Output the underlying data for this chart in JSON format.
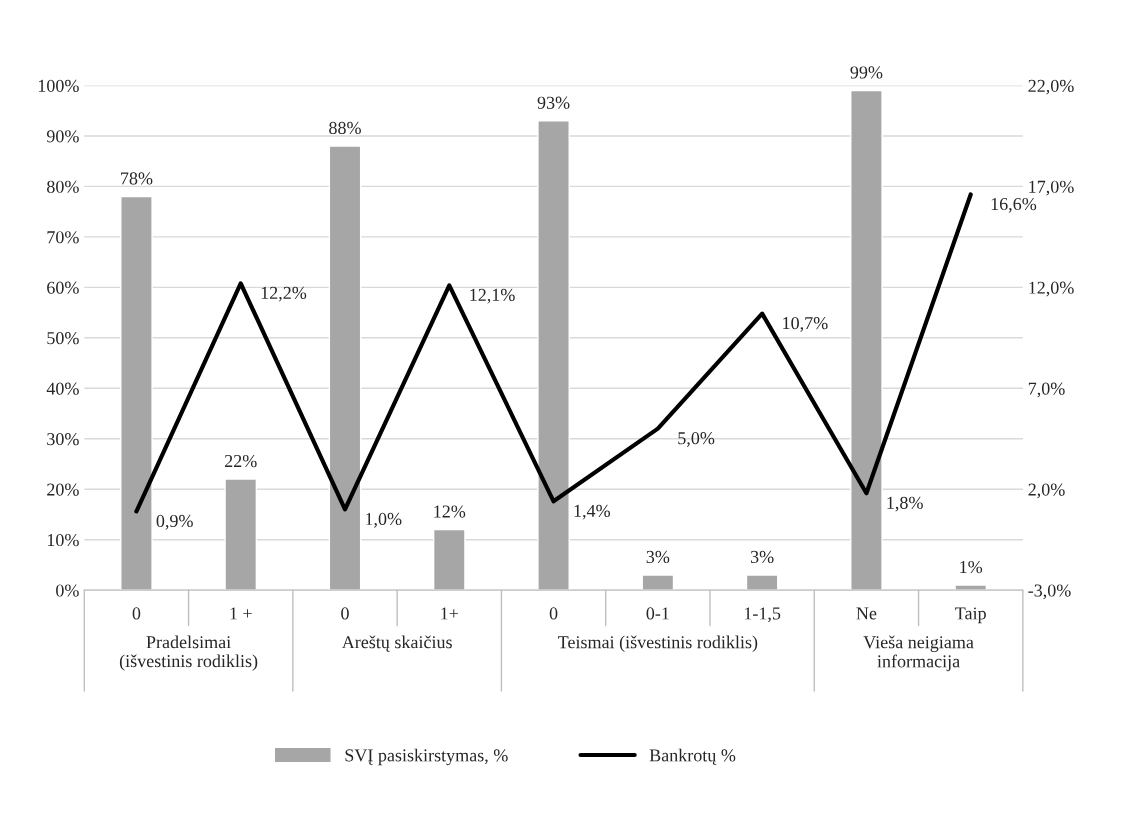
{
  "chart_data": {
    "type": "bar",
    "categories": [
      "0",
      "1 +",
      "0",
      "1+",
      "0",
      "0-1",
      "1-1,5",
      "Ne",
      "Taip"
    ],
    "series": [
      {
        "name": "SVĮ pasiskirstymas, %",
        "color": "#a6a6a6",
        "values": [
          78,
          22,
          88,
          12,
          93,
          3,
          3,
          99,
          1
        ],
        "value_labels": [
          "78%",
          "22%",
          "88%",
          "12%",
          "93%",
          "3%",
          "3%",
          "99%",
          "1%"
        ]
      },
      {
        "name": "Bankrotų %",
        "type": "line",
        "axis": "y2",
        "color": "#000000",
        "values": [
          0.9,
          12.2,
          1.0,
          12.1,
          1.4,
          5.0,
          10.7,
          1.8,
          16.6
        ],
        "value_labels": [
          "0,9%",
          "12,2%",
          "1,0%",
          "12,1%",
          "1,4%",
          "5,0%",
          "10,7%",
          "1,8%",
          "16,6%"
        ]
      }
    ],
    "ylim": [
      0,
      100
    ],
    "yticks": [
      {
        "value": 0,
        "label": "0%"
      },
      {
        "value": 10,
        "label": "10%"
      },
      {
        "value": 20,
        "label": "20%"
      },
      {
        "value": 30,
        "label": "30%"
      },
      {
        "value": 40,
        "label": "40%"
      },
      {
        "value": 50,
        "label": "50%"
      },
      {
        "value": 60,
        "label": "60%"
      },
      {
        "value": 70,
        "label": "70%"
      },
      {
        "value": 80,
        "label": "80%"
      },
      {
        "value": 90,
        "label": "90%"
      },
      {
        "value": 100,
        "label": "100%"
      }
    ],
    "y2lim": [
      -3,
      22
    ],
    "y2ticks": [
      {
        "value": -3,
        "label": "-3,0%"
      },
      {
        "value": 2,
        "label": "2,0%"
      },
      {
        "value": 7,
        "label": "7,0%"
      },
      {
        "value": 12,
        "label": "12,0%"
      },
      {
        "value": 17,
        "label": "17,0%"
      },
      {
        "value": 22,
        "label": "22,0%"
      }
    ],
    "annotations": [
      "Pradelsimai\n(išvestinis rodiklis)",
      "Areštų skaičius",
      "Teismai (išvestinis rodiklis)",
      "Vieša neigiama\ninformacija"
    ],
    "grid": "y",
    "legend": "bottom",
    "marker": "none",
    "line_style": "solid"
  }
}
